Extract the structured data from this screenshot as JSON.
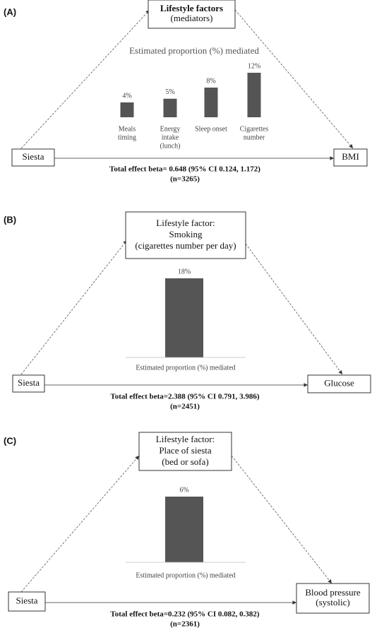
{
  "panels": [
    {
      "label": "(A)",
      "mediator": [
        "Lifestyle factors",
        "(mediators)"
      ],
      "exposure": "Siesta",
      "outcome": [
        "BMI"
      ],
      "effect": [
        "Total effect beta= 0.648 (95% CI 0.124, 1.172)",
        "(n=3265)"
      ],
      "chart": {
        "type": "bar",
        "axis_label": "Estimated proportion (%) mediated",
        "categories": [
          [
            "Meals",
            "timing"
          ],
          [
            "Energy",
            "intake",
            "(lunch)"
          ],
          [
            "Sleep onset"
          ],
          [
            "Cigarettes",
            "number"
          ]
        ],
        "values": [
          4,
          5,
          8,
          12
        ],
        "value_labels": [
          "4%",
          "5%",
          "8%",
          "12%"
        ],
        "color": "#555555"
      }
    },
    {
      "label": "(B)",
      "mediator": [
        "Lifestyle factor:",
        "Smoking",
        "(cigarettes number per day)"
      ],
      "exposure": "Siesta",
      "outcome": [
        "Glucose"
      ],
      "effect": [
        "Total effect beta=2.388 (95% CI 0.791, 3.986)",
        "(n=2451)"
      ],
      "chart": {
        "type": "bar",
        "axis_label": "Estimated proportion (%) mediated",
        "values": [
          18
        ],
        "value_labels": [
          "18%"
        ],
        "color": "#555555"
      }
    },
    {
      "label": "(C)",
      "mediator": [
        "Lifestyle factor:",
        "Place of siesta",
        "(bed or sofa)"
      ],
      "exposure": "Siesta",
      "outcome": [
        "Blood pressure",
        "(systolic)"
      ],
      "effect": [
        "Total effect beta=0.232 (95% CI 0.082, 0.382)",
        "(n=2361)"
      ],
      "chart": {
        "type": "bar",
        "axis_label": "Estimated proportion (%) mediated",
        "values": [
          6
        ],
        "value_labels": [
          "6%"
        ],
        "color": "#555555"
      }
    }
  ]
}
